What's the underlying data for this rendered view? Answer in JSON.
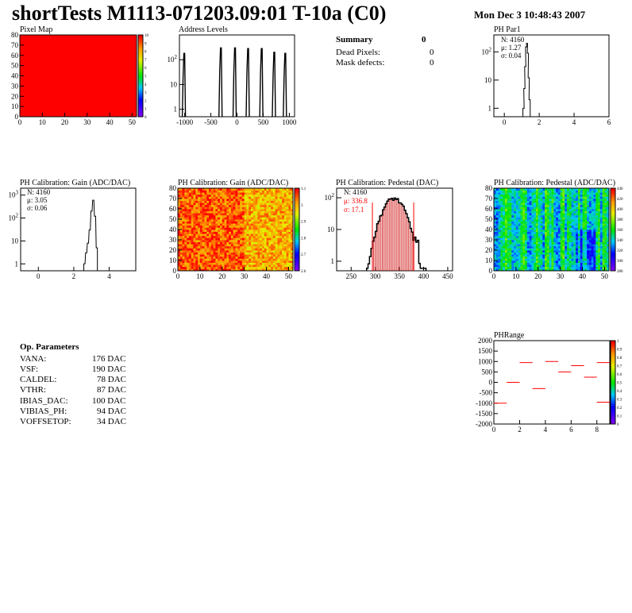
{
  "header": {
    "title": "shortTests M1113-071203.09:01 T-10a (C0)",
    "date": "Mon Dec  3 10:48:43 2007"
  },
  "summary": {
    "title": "Summary",
    "title_value": "0",
    "rows": [
      {
        "label": "Dead Pixels:",
        "value": "0"
      },
      {
        "label": "Mask defects:",
        "value": "0"
      }
    ]
  },
  "op_params": {
    "title": "Op. Parameters",
    "rows": [
      {
        "label": "VANA:",
        "value": "176 DAC"
      },
      {
        "label": "VSF:",
        "value": "190 DAC"
      },
      {
        "label": "CALDEL:",
        "value": "78 DAC"
      },
      {
        "label": "VTHR:",
        "value": "87 DAC"
      },
      {
        "label": "IBIAS_DAC:",
        "value": "100 DAC"
      },
      {
        "label": "VIBIAS_PH:",
        "value": "94 DAC"
      },
      {
        "label": "VOFFSETOP:",
        "value": "34 DAC"
      }
    ]
  },
  "colors": {
    "red": "#ff0000",
    "black": "#000000",
    "stat_red": "#ff0000"
  },
  "chart_data": [
    {
      "id": "pixel-map",
      "type": "heatmap",
      "title": "Pixel Map",
      "xlim": [
        0,
        52
      ],
      "ylim": [
        0,
        80
      ],
      "xticks": [
        "0",
        "10",
        "20",
        "30",
        "40",
        "50"
      ],
      "yticks": [
        "0",
        "10",
        "20",
        "30",
        "40",
        "50",
        "60",
        "70",
        "80"
      ],
      "uniform_value": 10,
      "zticks": [
        "0",
        "1",
        "2",
        "3",
        "4",
        "5",
        "6",
        "7",
        "8",
        "9",
        "10"
      ]
    },
    {
      "id": "address-levels",
      "type": "bar",
      "title": "Address Levels",
      "log_y": true,
      "xlim": [
        -1100,
        1100
      ],
      "ylim": [
        0.5,
        1000
      ],
      "xticks": [
        "-1000",
        "-500",
        "0",
        "500",
        "1000"
      ],
      "yticks": [
        "1",
        "10",
        "10^2"
      ],
      "peaks": [
        {
          "x": -1000,
          "y": 180
        },
        {
          "x": -300,
          "y": 300
        },
        {
          "x": -30,
          "y": 300
        },
        {
          "x": 220,
          "y": 280
        },
        {
          "x": 480,
          "y": 280
        },
        {
          "x": 720,
          "y": 200
        },
        {
          "x": 930,
          "y": 180
        }
      ]
    },
    {
      "id": "ph-par1",
      "type": "bar",
      "title": "PH Par1",
      "log_y": true,
      "xlim": [
        -0.6,
        6
      ],
      "ylim": [
        0.5,
        400
      ],
      "xticks": [
        "0",
        "2",
        "4",
        "6"
      ],
      "yticks": [
        "1",
        "10",
        "10^2"
      ],
      "stats": [
        "N: 4160",
        "μ: 1.27",
        "σ: 0.04"
      ],
      "values": [
        {
          "x": 1.1,
          "y": 1
        },
        {
          "x": 1.15,
          "y": 5
        },
        {
          "x": 1.2,
          "y": 30
        },
        {
          "x": 1.25,
          "y": 150
        },
        {
          "x": 1.3,
          "y": 200
        },
        {
          "x": 1.35,
          "y": 90
        },
        {
          "x": 1.4,
          "y": 12
        },
        {
          "x": 1.45,
          "y": 2
        }
      ]
    },
    {
      "id": "ph-gain-hist",
      "type": "bar",
      "title": "PH Calibration: Gain (ADC/DAC)",
      "log_y": true,
      "xlim": [
        -1,
        5.5
      ],
      "ylim": [
        0.5,
        2000
      ],
      "xticks": [
        "0",
        "2",
        "4"
      ],
      "yticks": [
        "1",
        "10",
        "10^2",
        "10^3"
      ],
      "stats": [
        "N: 4160",
        "μ: 3.05",
        "σ: 0.06"
      ],
      "values": [
        {
          "x": 2.6,
          "y": 1
        },
        {
          "x": 2.7,
          "y": 3
        },
        {
          "x": 2.8,
          "y": 8
        },
        {
          "x": 2.9,
          "y": 30
        },
        {
          "x": 3.0,
          "y": 200
        },
        {
          "x": 3.1,
          "y": 600
        },
        {
          "x": 3.2,
          "y": 120
        },
        {
          "x": 3.3,
          "y": 5
        }
      ]
    },
    {
      "id": "ph-gain-map",
      "type": "heatmap",
      "title": "PH Calibration: Gain (ADC/DAC)",
      "xlim": [
        0,
        52
      ],
      "ylim": [
        0,
        80
      ],
      "xticks": [
        "0",
        "10",
        "20",
        "30",
        "40",
        "50"
      ],
      "yticks": [
        "0",
        "10",
        "20",
        "30",
        "40",
        "50",
        "60",
        "70",
        "80"
      ],
      "zticks": [
        "2.6",
        "2.7",
        "2.8",
        "2.9",
        "3",
        "3.1"
      ]
    },
    {
      "id": "ph-pedestal-hist",
      "type": "bar",
      "title": "PH Calibration: Pedestal (DAC)",
      "log_y": true,
      "xlim": [
        220,
        460
      ],
      "ylim": [
        0.5,
        200
      ],
      "xticks": [
        "250",
        "300",
        "350",
        "400",
        "450"
      ],
      "yticks": [
        "1",
        "10",
        "10^2"
      ],
      "stats": [
        "N: 4160",
        "μ: 336.8",
        "σ: 17.1"
      ],
      "mean": 336.8,
      "sigma": 17.1
    },
    {
      "id": "ph-pedestal-map",
      "type": "heatmap",
      "title": "PH Calibration: Pedestal (ADC/DAC)",
      "xlim": [
        0,
        52
      ],
      "ylim": [
        0,
        80
      ],
      "xticks": [
        "0",
        "10",
        "20",
        "30",
        "40",
        "50"
      ],
      "yticks": [
        "0",
        "10",
        "20",
        "30",
        "40",
        "50",
        "60",
        "70",
        "80"
      ],
      "zticks": [
        "280",
        "300",
        "320",
        "340",
        "360",
        "380",
        "400",
        "420",
        "440"
      ]
    },
    {
      "id": "ph-range",
      "type": "scatter",
      "title": "PHRange",
      "xlim": [
        0,
        9
      ],
      "ylim": [
        -2000,
        2000
      ],
      "xticks": [
        "0",
        "2",
        "4",
        "6",
        "8"
      ],
      "yticks": [
        "-2000",
        "-1500",
        "-1000",
        "-500",
        "0",
        "500",
        "1000",
        "1500",
        "2000"
      ],
      "zticks": [
        "0",
        "0.1",
        "0.2",
        "0.3",
        "0.4",
        "0.5",
        "0.6",
        "0.7",
        "0.8",
        "0.9",
        "1"
      ],
      "points": [
        {
          "x": 0.5,
          "y": -1000
        },
        {
          "x": 1.5,
          "y": 0
        },
        {
          "x": 2.5,
          "y": 950
        },
        {
          "x": 3.5,
          "y": -300
        },
        {
          "x": 4.5,
          "y": 1000
        },
        {
          "x": 5.5,
          "y": 500
        },
        {
          "x": 6.5,
          "y": 800
        },
        {
          "x": 7.5,
          "y": 250
        },
        {
          "x": 8.5,
          "y": 950
        },
        {
          "x": 8.5,
          "y": -950
        }
      ]
    }
  ]
}
